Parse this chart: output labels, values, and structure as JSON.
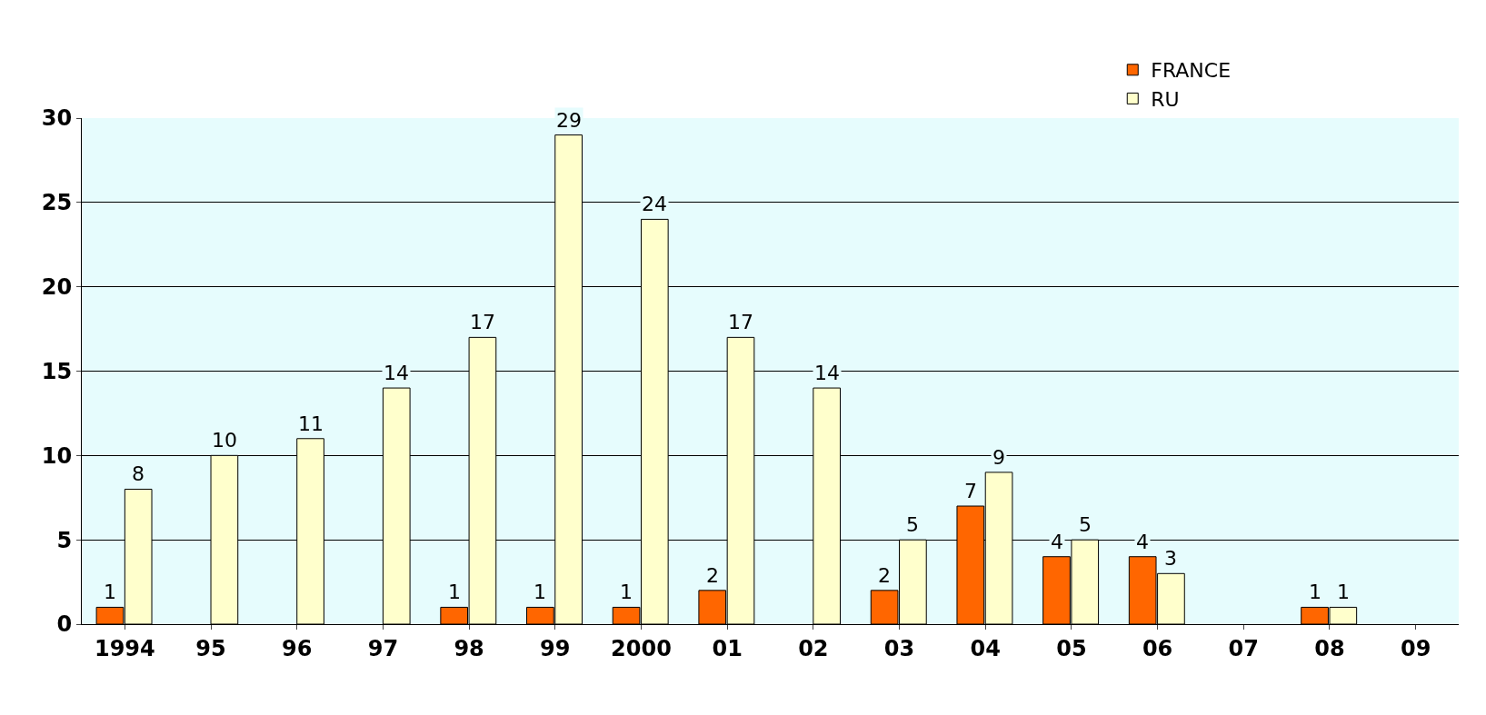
{
  "chart_data": {
    "type": "bar",
    "categories": [
      "1994",
      "95",
      "96",
      "97",
      "98",
      "99",
      "2000",
      "01",
      "02",
      "03",
      "04",
      "05",
      "06",
      "07",
      "08",
      "09"
    ],
    "series": [
      {
        "name": "FRANCE",
        "color": "#ff6600",
        "values": [
          1,
          null,
          null,
          null,
          1,
          1,
          1,
          2,
          null,
          2,
          7,
          4,
          4,
          null,
          1,
          null
        ]
      },
      {
        "name": "RU",
        "color": "#ffffcc",
        "values": [
          8,
          10,
          11,
          14,
          17,
          29,
          24,
          17,
          14,
          5,
          9,
          5,
          3,
          null,
          1,
          null
        ]
      }
    ],
    "ylim": [
      0,
      30
    ],
    "yticks": [
      0,
      5,
      10,
      15,
      20,
      25,
      30
    ],
    "grid": "y",
    "legend": "top right",
    "data_labels": true
  }
}
